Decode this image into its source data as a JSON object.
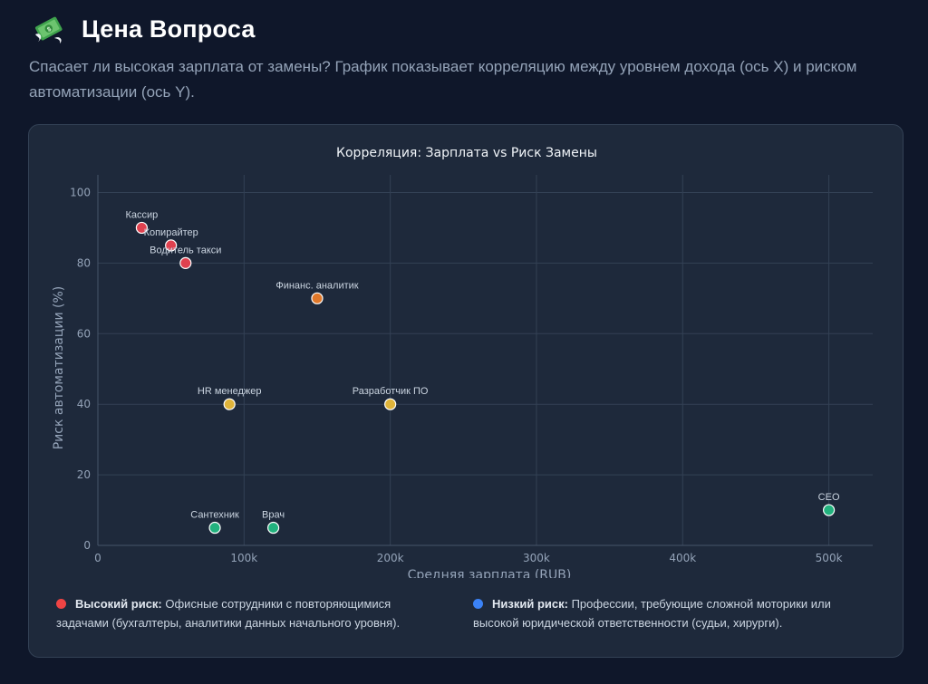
{
  "header": {
    "icon": "money-with-wings-icon",
    "title": "Цена Вопроса",
    "subtitle": "Спасает ли высокая зарплата от замены? График показывает корреляцию между уровнем дохода (ось X) и риском автоматизации (ось Y)."
  },
  "colors": {
    "high": "#e0414f",
    "mid_high": "#e0782a",
    "mid": "#e0b43a",
    "low": "#22b27e",
    "legend_high": "#ef4444",
    "legend_low": "#3b82f6"
  },
  "chart_data": {
    "type": "scatter",
    "title": "Корреляция: Зарплата vs Риск Замены",
    "xlabel": "Средняя зарплата (RUB)",
    "ylabel": "Риск автоматизации (%)",
    "xlim": [
      0,
      530000
    ],
    "ylim": [
      0,
      105
    ],
    "grid": true,
    "x_ticks": [
      0,
      100000,
      200000,
      300000,
      400000,
      500000
    ],
    "x_tick_labels": [
      "0",
      "100k",
      "200k",
      "300k",
      "400k",
      "500k"
    ],
    "y_ticks": [
      0,
      20,
      40,
      60,
      80,
      100
    ],
    "y_tick_labels": [
      "0",
      "20",
      "40",
      "60",
      "80",
      "100"
    ],
    "points": [
      {
        "label": "Кассир",
        "x": 30000,
        "y": 90,
        "color": "#e0414f"
      },
      {
        "label": "Копирайтер",
        "x": 50000,
        "y": 85,
        "color": "#e0414f"
      },
      {
        "label": "Водитель такси",
        "x": 60000,
        "y": 80,
        "color": "#e0414f"
      },
      {
        "label": "Финанс. аналитик",
        "x": 150000,
        "y": 70,
        "color": "#e0782a"
      },
      {
        "label": "HR менеджер",
        "x": 90000,
        "y": 40,
        "color": "#e0b43a"
      },
      {
        "label": "Разработчик ПО",
        "x": 200000,
        "y": 40,
        "color": "#e0b43a"
      },
      {
        "label": "Сантехник",
        "x": 80000,
        "y": 5,
        "color": "#22b27e"
      },
      {
        "label": "Врач",
        "x": 120000,
        "y": 5,
        "color": "#22b27e"
      },
      {
        "label": "CEO",
        "x": 500000,
        "y": 10,
        "color": "#22b27e"
      }
    ]
  },
  "legend": {
    "high": {
      "title": "Высокий риск:",
      "text": " Офисные сотрудники с повторяющимися задачами (бухгалтеры, аналитики данных начального уровня)."
    },
    "low": {
      "title": "Низкий риск:",
      "text": " Профессии, требующие сложной моторики или высокой юридической ответственности (судьи, хирурги)."
    }
  }
}
